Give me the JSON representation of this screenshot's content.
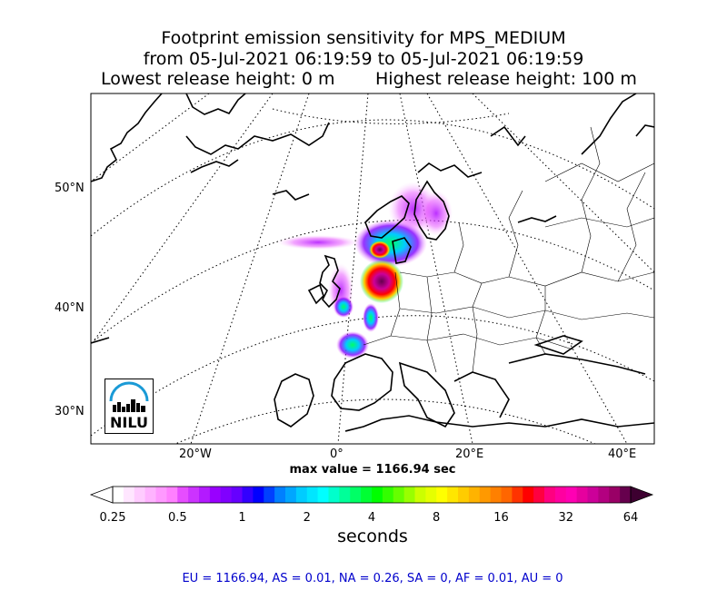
{
  "chart_data": {
    "type": "heatmap",
    "title_lines": [
      "Footprint emission sensitivity for MPS_MEDIUM",
      "from 05-Jul-2021 06:19:59 to 05-Jul-2021 06:19:59"
    ],
    "release_heights": {
      "lowest": "Lowest release height: 0 m",
      "highest": "Highest release height: 100 m"
    },
    "lat_labels": [
      "50°N",
      "40°N",
      "30°N"
    ],
    "lon_labels": [
      "20°W",
      "0°",
      "20°E",
      "40°E"
    ],
    "max_value_text": "max value = 1166.94 sec",
    "colorbar": {
      "label": "seconds",
      "scale": "log",
      "range": [
        0.25,
        64
      ],
      "ticks": [
        "0.25",
        "0.5",
        "1",
        "2",
        "4",
        "8",
        "16",
        "32",
        "64"
      ],
      "colors": [
        "#ffffff",
        "#ffe6ff",
        "#ffccff",
        "#ffb3ff",
        "#ff99ff",
        "#ff80ff",
        "#e64dff",
        "#cc33ff",
        "#b31aff",
        "#9900ff",
        "#8000ff",
        "#6600ff",
        "#3300ff",
        "#0000ff",
        "#0040ff",
        "#0080ff",
        "#00a6ff",
        "#00ccff",
        "#00e6ff",
        "#00ffff",
        "#00ffcc",
        "#00ff99",
        "#00ff66",
        "#00ff33",
        "#00ff00",
        "#33ff00",
        "#66ff00",
        "#99ff00",
        "#ccff00",
        "#e6ff00",
        "#ffff00",
        "#ffe600",
        "#ffcc00",
        "#ffb300",
        "#ff9900",
        "#ff8000",
        "#ff6600",
        "#ff3300",
        "#ff0000",
        "#ff0040",
        "#ff0080",
        "#ff00a0",
        "#ff00b3",
        "#e6009e",
        "#cc0099",
        "#b30080",
        "#990066",
        "#66004d"
      ]
    }
  },
  "logo": {
    "text": "NILU"
  },
  "footer": "EU = 1166.94,  AS = 0.01,  NA = 0.26,  SA = 0,  AF = 0.01,  AU = 0"
}
